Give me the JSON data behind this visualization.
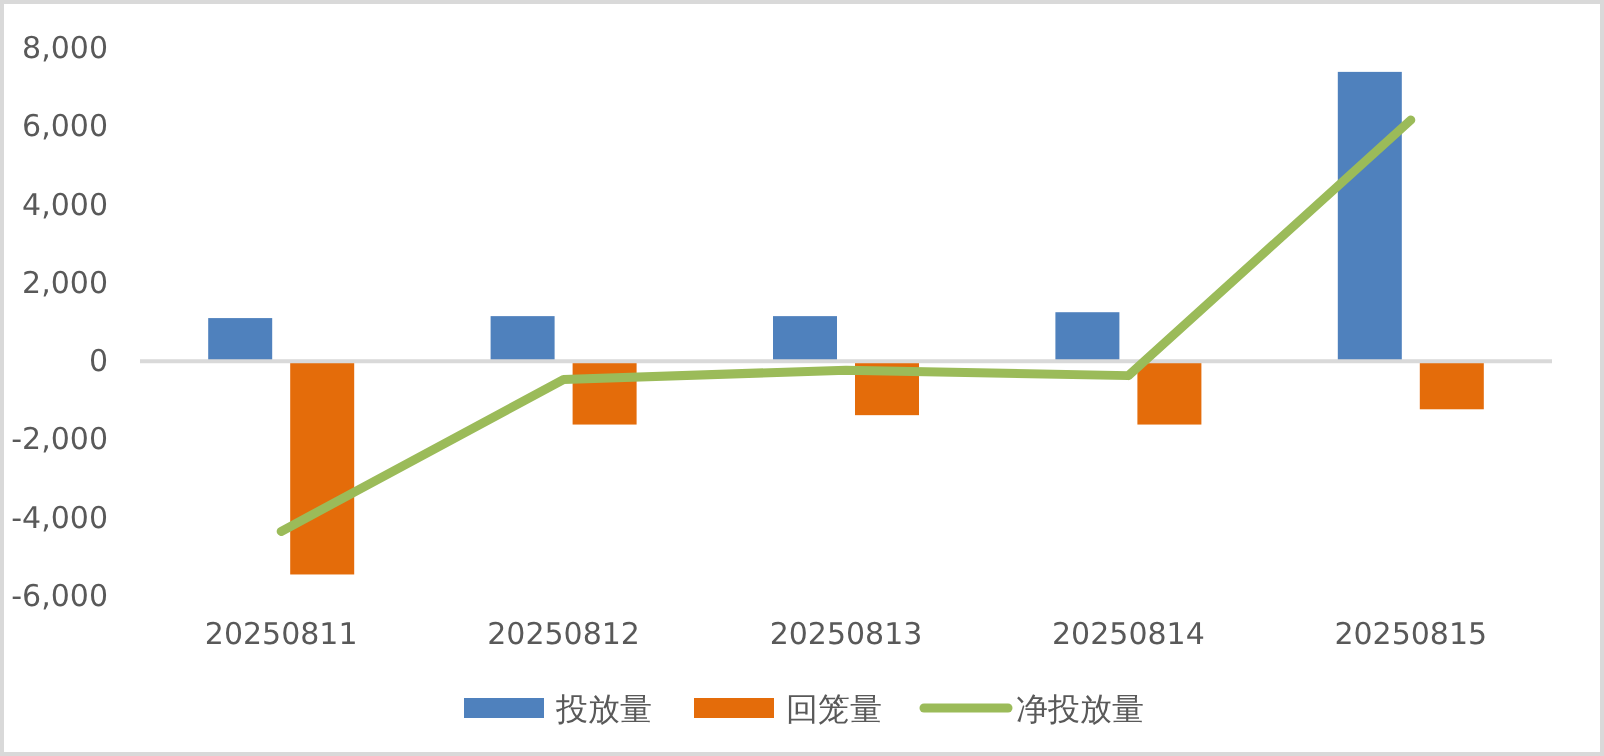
{
  "chart_data": {
    "type": "bar",
    "categories": [
      "20250811",
      "20250812",
      "20250813",
      "20250814",
      "20250815"
    ],
    "series": [
      {
        "name": "投放量",
        "color": "#4f81bd",
        "values": [
          1100,
          1150,
          1150,
          1250,
          7390
        ]
      },
      {
        "name": "回笼量",
        "color": "#e46c0a",
        "values": [
          -5450,
          -1620,
          -1380,
          -1620,
          -1230
        ]
      },
      {
        "name": "净投放量",
        "type": "line",
        "color": "#9bbb59",
        "values": [
          -4350,
          -470,
          -230,
          -370,
          6160
        ]
      }
    ],
    "ylim": [
      -6000,
      8000
    ],
    "yticks": [
      {
        "value": -6000,
        "label": "-6,000"
      },
      {
        "value": -4000,
        "label": "-4,000"
      },
      {
        "value": -2000,
        "label": "-2,000"
      },
      0,
      {
        "value": 2000,
        "label": "2,000"
      },
      {
        "value": 4000,
        "label": "4,000"
      },
      {
        "value": 6000,
        "label": "6,000"
      },
      {
        "value": 8000,
        "label": "8,000"
      }
    ],
    "legend": "bottom",
    "marker": "none"
  }
}
